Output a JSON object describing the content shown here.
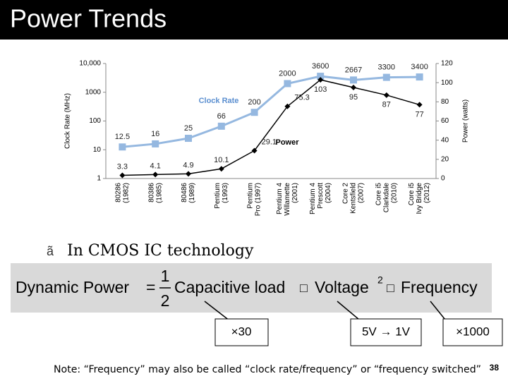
{
  "title": "Power Trends",
  "chart_data": {
    "type": "line",
    "categories": [
      [
        "80286",
        "(1982)"
      ],
      [
        "80386",
        "(1985)"
      ],
      [
        "80486",
        "(1989)"
      ],
      [
        "Pentium",
        "(1993)"
      ],
      [
        "Pentium",
        "Pro (1997)"
      ],
      [
        "Pentium 4",
        "Willamette",
        "(2001)"
      ],
      [
        "Pentium 4",
        "Prescott",
        "(2004)"
      ],
      [
        "Core 2",
        "Kentsfield",
        "(2007)"
      ],
      [
        "Core i5",
        "Clarkdale",
        "(2010)"
      ],
      [
        "Core i5",
        "Ivy Bridge",
        "(2012)"
      ]
    ],
    "series": [
      {
        "name": "Clock Rate",
        "color": "#95b8e0",
        "values": [
          12.5,
          16,
          25,
          66,
          200,
          2000,
          3600,
          2667,
          3300,
          3400
        ]
      },
      {
        "name": "Power",
        "color": "#000000",
        "axis": "y2",
        "values": [
          3.3,
          4.1,
          4.9,
          10.1,
          29.1,
          75.3,
          103,
          95,
          87,
          77
        ]
      }
    ],
    "ylabel": "Clock Rate (MHz)",
    "y2label": "Power (watts)",
    "yscale": "log",
    "ylim": [
      1,
      10000
    ],
    "yticks": [
      1,
      10,
      100,
      1000,
      {
        "value": 10000,
        "label": "10,000"
      }
    ],
    "y2lim": [
      0,
      120
    ],
    "y2ticks": [
      0,
      20,
      40,
      60,
      80,
      100,
      120
    ]
  },
  "bullet": {
    "marker": "ã",
    "text": "In CMOS IC technology"
  },
  "formula": {
    "lhs": "Dynamic Power",
    "equals": "=",
    "numerator": "1",
    "denominator": "2",
    "terms": [
      "Capacitive load",
      "Voltage",
      "Frequency"
    ],
    "separator": "□",
    "exponent": "2"
  },
  "annotations": [
    "×30",
    "5V → 1V",
    "×1000"
  ],
  "note": "Note: “Frequency” may also be called “clock rate/frequency” or “frequency switched”",
  "page_number": "38"
}
